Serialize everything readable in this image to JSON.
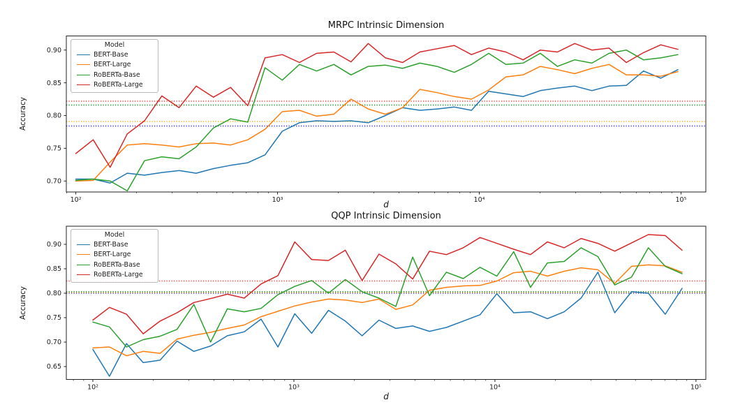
{
  "figure": {
    "background": "#ffffff"
  },
  "chart_data": [
    {
      "type": "line",
      "title": "MRPC Intrinsic Dimension",
      "xlabel": "d",
      "ylabel": "Accuracy",
      "legend_title": "Model",
      "legend_position": "upper left",
      "x_scale": "log",
      "grid": false,
      "xlim_log10": [
        1.953,
        5.123
      ],
      "ylim": [
        0.6833,
        0.9215
      ],
      "x_ticks": [
        100,
        1000,
        10000,
        100000
      ],
      "x_tick_labels": [
        "10²",
        "10³",
        "10⁴",
        "10⁵"
      ],
      "y_ticks": [
        0.7,
        0.75,
        0.8,
        0.85,
        0.9
      ],
      "y_tick_labels": [
        "0.70",
        "0.75",
        "0.80",
        "0.85",
        "0.90"
      ],
      "x": [
        100,
        122,
        148,
        180,
        219,
        267,
        325,
        395,
        481,
        585,
        712,
        867,
        1055,
        1284,
        1562,
        1901,
        2314,
        2816,
        3427,
        4170,
        5075,
        6176,
        7516,
        9146,
        11131,
        13546,
        16485,
        20062,
        24415,
        29712,
        36159,
        44004,
        53551,
        65170,
        79310,
        96520
      ],
      "series": [
        {
          "name": "BERT-Base",
          "color": "#1f77b4",
          "values": [
            0.703,
            0.703,
            0.697,
            0.712,
            0.709,
            0.713,
            0.716,
            0.712,
            0.719,
            0.724,
            0.728,
            0.74,
            0.776,
            0.789,
            0.792,
            0.791,
            0.792,
            0.789,
            0.8,
            0.812,
            0.808,
            0.81,
            0.813,
            0.808,
            0.837,
            0.833,
            0.829,
            0.838,
            0.842,
            0.845,
            0.838,
            0.845,
            0.846,
            0.868,
            0.857,
            0.87
          ]
        },
        {
          "name": "BERT-Large",
          "color": "#ff7f0e",
          "values": [
            0.7,
            0.701,
            0.729,
            0.755,
            0.757,
            0.755,
            0.752,
            0.757,
            0.758,
            0.755,
            0.763,
            0.779,
            0.806,
            0.808,
            0.799,
            0.802,
            0.825,
            0.81,
            0.802,
            0.812,
            0.84,
            0.835,
            0.829,
            0.825,
            0.839,
            0.859,
            0.862,
            0.875,
            0.87,
            0.864,
            0.872,
            0.878,
            0.862,
            0.862,
            0.86,
            0.867
          ]
        },
        {
          "name": "RoBERTa-Base",
          "color": "#2ca02c",
          "values": [
            0.701,
            0.703,
            0.7,
            0.685,
            0.731,
            0.737,
            0.734,
            0.752,
            0.781,
            0.795,
            0.79,
            0.873,
            0.854,
            0.878,
            0.868,
            0.878,
            0.862,
            0.875,
            0.877,
            0.872,
            0.88,
            0.875,
            0.866,
            0.878,
            0.895,
            0.878,
            0.88,
            0.895,
            0.875,
            0.885,
            0.88,
            0.895,
            0.9,
            0.885,
            0.888,
            0.893
          ]
        },
        {
          "name": "RoBERTa-Large",
          "color": "#d62728",
          "values": [
            0.742,
            0.763,
            0.721,
            0.772,
            0.792,
            0.83,
            0.812,
            0.845,
            0.828,
            0.843,
            0.815,
            0.888,
            0.893,
            0.881,
            0.895,
            0.897,
            0.882,
            0.91,
            0.888,
            0.881,
            0.897,
            0.902,
            0.907,
            0.893,
            0.903,
            0.897,
            0.885,
            0.9,
            0.897,
            0.91,
            0.9,
            0.903,
            0.881,
            0.896,
            0.908,
            0.901
          ]
        }
      ],
      "baselines": [
        {
          "color": "#1515ff",
          "value": 0.784
        },
        {
          "color": "#ffa500",
          "value": 0.791
        },
        {
          "color": "#008000",
          "value": 0.816
        },
        {
          "color": "#ff2a2a",
          "value": 0.822
        }
      ]
    },
    {
      "type": "line",
      "title": "QQP Intrinsic Dimension",
      "xlabel": "d",
      "ylabel": "Accuracy",
      "legend_title": "Model",
      "legend_position": "upper left",
      "x_scale": "log",
      "grid": false,
      "xlim_log10": [
        1.868,
        5.049
      ],
      "ylim": [
        0.6236,
        0.9371
      ],
      "x_ticks": [
        100,
        1000,
        10000,
        100000
      ],
      "x_tick_labels": [
        "10²",
        "10³",
        "10⁴",
        "10⁵"
      ],
      "y_ticks": [
        0.65,
        0.7,
        0.75,
        0.8,
        0.85,
        0.9
      ],
      "y_tick_labels": [
        "0.65",
        "0.70",
        "0.75",
        "0.80",
        "0.85",
        "0.90"
      ],
      "x": [
        100,
        121,
        147,
        178,
        216,
        262,
        318,
        385,
        467,
        566,
        687,
        833,
        1010,
        1225,
        1486,
        1802,
        2185,
        2650,
        3214,
        3898,
        4727,
        5733,
        6952,
        8431,
        10224,
        12399,
        15036,
        18234,
        22112,
        26815,
        32518,
        39434,
        47821,
        57992,
        70325,
        85280
      ],
      "series": [
        {
          "name": "BERT-Base",
          "color": "#1f77b4",
          "values": [
            0.685,
            0.63,
            0.697,
            0.658,
            0.663,
            0.702,
            0.681,
            0.692,
            0.713,
            0.721,
            0.747,
            0.69,
            0.758,
            0.718,
            0.765,
            0.743,
            0.713,
            0.745,
            0.728,
            0.733,
            0.722,
            0.73,
            0.743,
            0.756,
            0.799,
            0.76,
            0.762,
            0.748,
            0.762,
            0.79,
            0.843,
            0.76,
            0.803,
            0.8,
            0.757,
            0.81
          ]
        },
        {
          "name": "BERT-Large",
          "color": "#ff7f0e",
          "values": [
            0.688,
            0.69,
            0.672,
            0.681,
            0.677,
            0.706,
            0.714,
            0.72,
            0.728,
            0.735,
            0.752,
            0.763,
            0.774,
            0.782,
            0.788,
            0.786,
            0.781,
            0.788,
            0.767,
            0.776,
            0.806,
            0.812,
            0.815,
            0.816,
            0.825,
            0.842,
            0.845,
            0.835,
            0.845,
            0.852,
            0.848,
            0.82,
            0.855,
            0.858,
            0.856,
            0.843
          ]
        },
        {
          "name": "RoBERTa-Base",
          "color": "#2ca02c",
          "values": [
            0.741,
            0.731,
            0.69,
            0.705,
            0.712,
            0.726,
            0.777,
            0.7,
            0.768,
            0.762,
            0.769,
            0.797,
            0.814,
            0.826,
            0.8,
            0.828,
            0.803,
            0.79,
            0.773,
            0.874,
            0.795,
            0.843,
            0.83,
            0.853,
            0.835,
            0.885,
            0.812,
            0.862,
            0.865,
            0.893,
            0.875,
            0.817,
            0.833,
            0.893,
            0.855,
            0.84
          ]
        },
        {
          "name": "RoBERTa-Large",
          "color": "#d62728",
          "values": [
            0.745,
            0.771,
            0.757,
            0.717,
            0.743,
            0.76,
            0.781,
            0.789,
            0.798,
            0.79,
            0.819,
            0.836,
            0.905,
            0.869,
            0.867,
            0.888,
            0.826,
            0.88,
            0.86,
            0.829,
            0.886,
            0.879,
            0.893,
            0.914,
            0.902,
            0.89,
            0.879,
            0.905,
            0.893,
            0.912,
            0.902,
            0.886,
            0.903,
            0.92,
            0.918,
            0.888
          ]
        }
      ],
      "baselines": [
        {
          "color": "#1515ff",
          "value": 0.8
        },
        {
          "color": "#ffa500",
          "value": 0.8015
        },
        {
          "color": "#008000",
          "value": 0.803
        },
        {
          "color": "#ff2a2a",
          "value": 0.825
        }
      ]
    }
  ]
}
